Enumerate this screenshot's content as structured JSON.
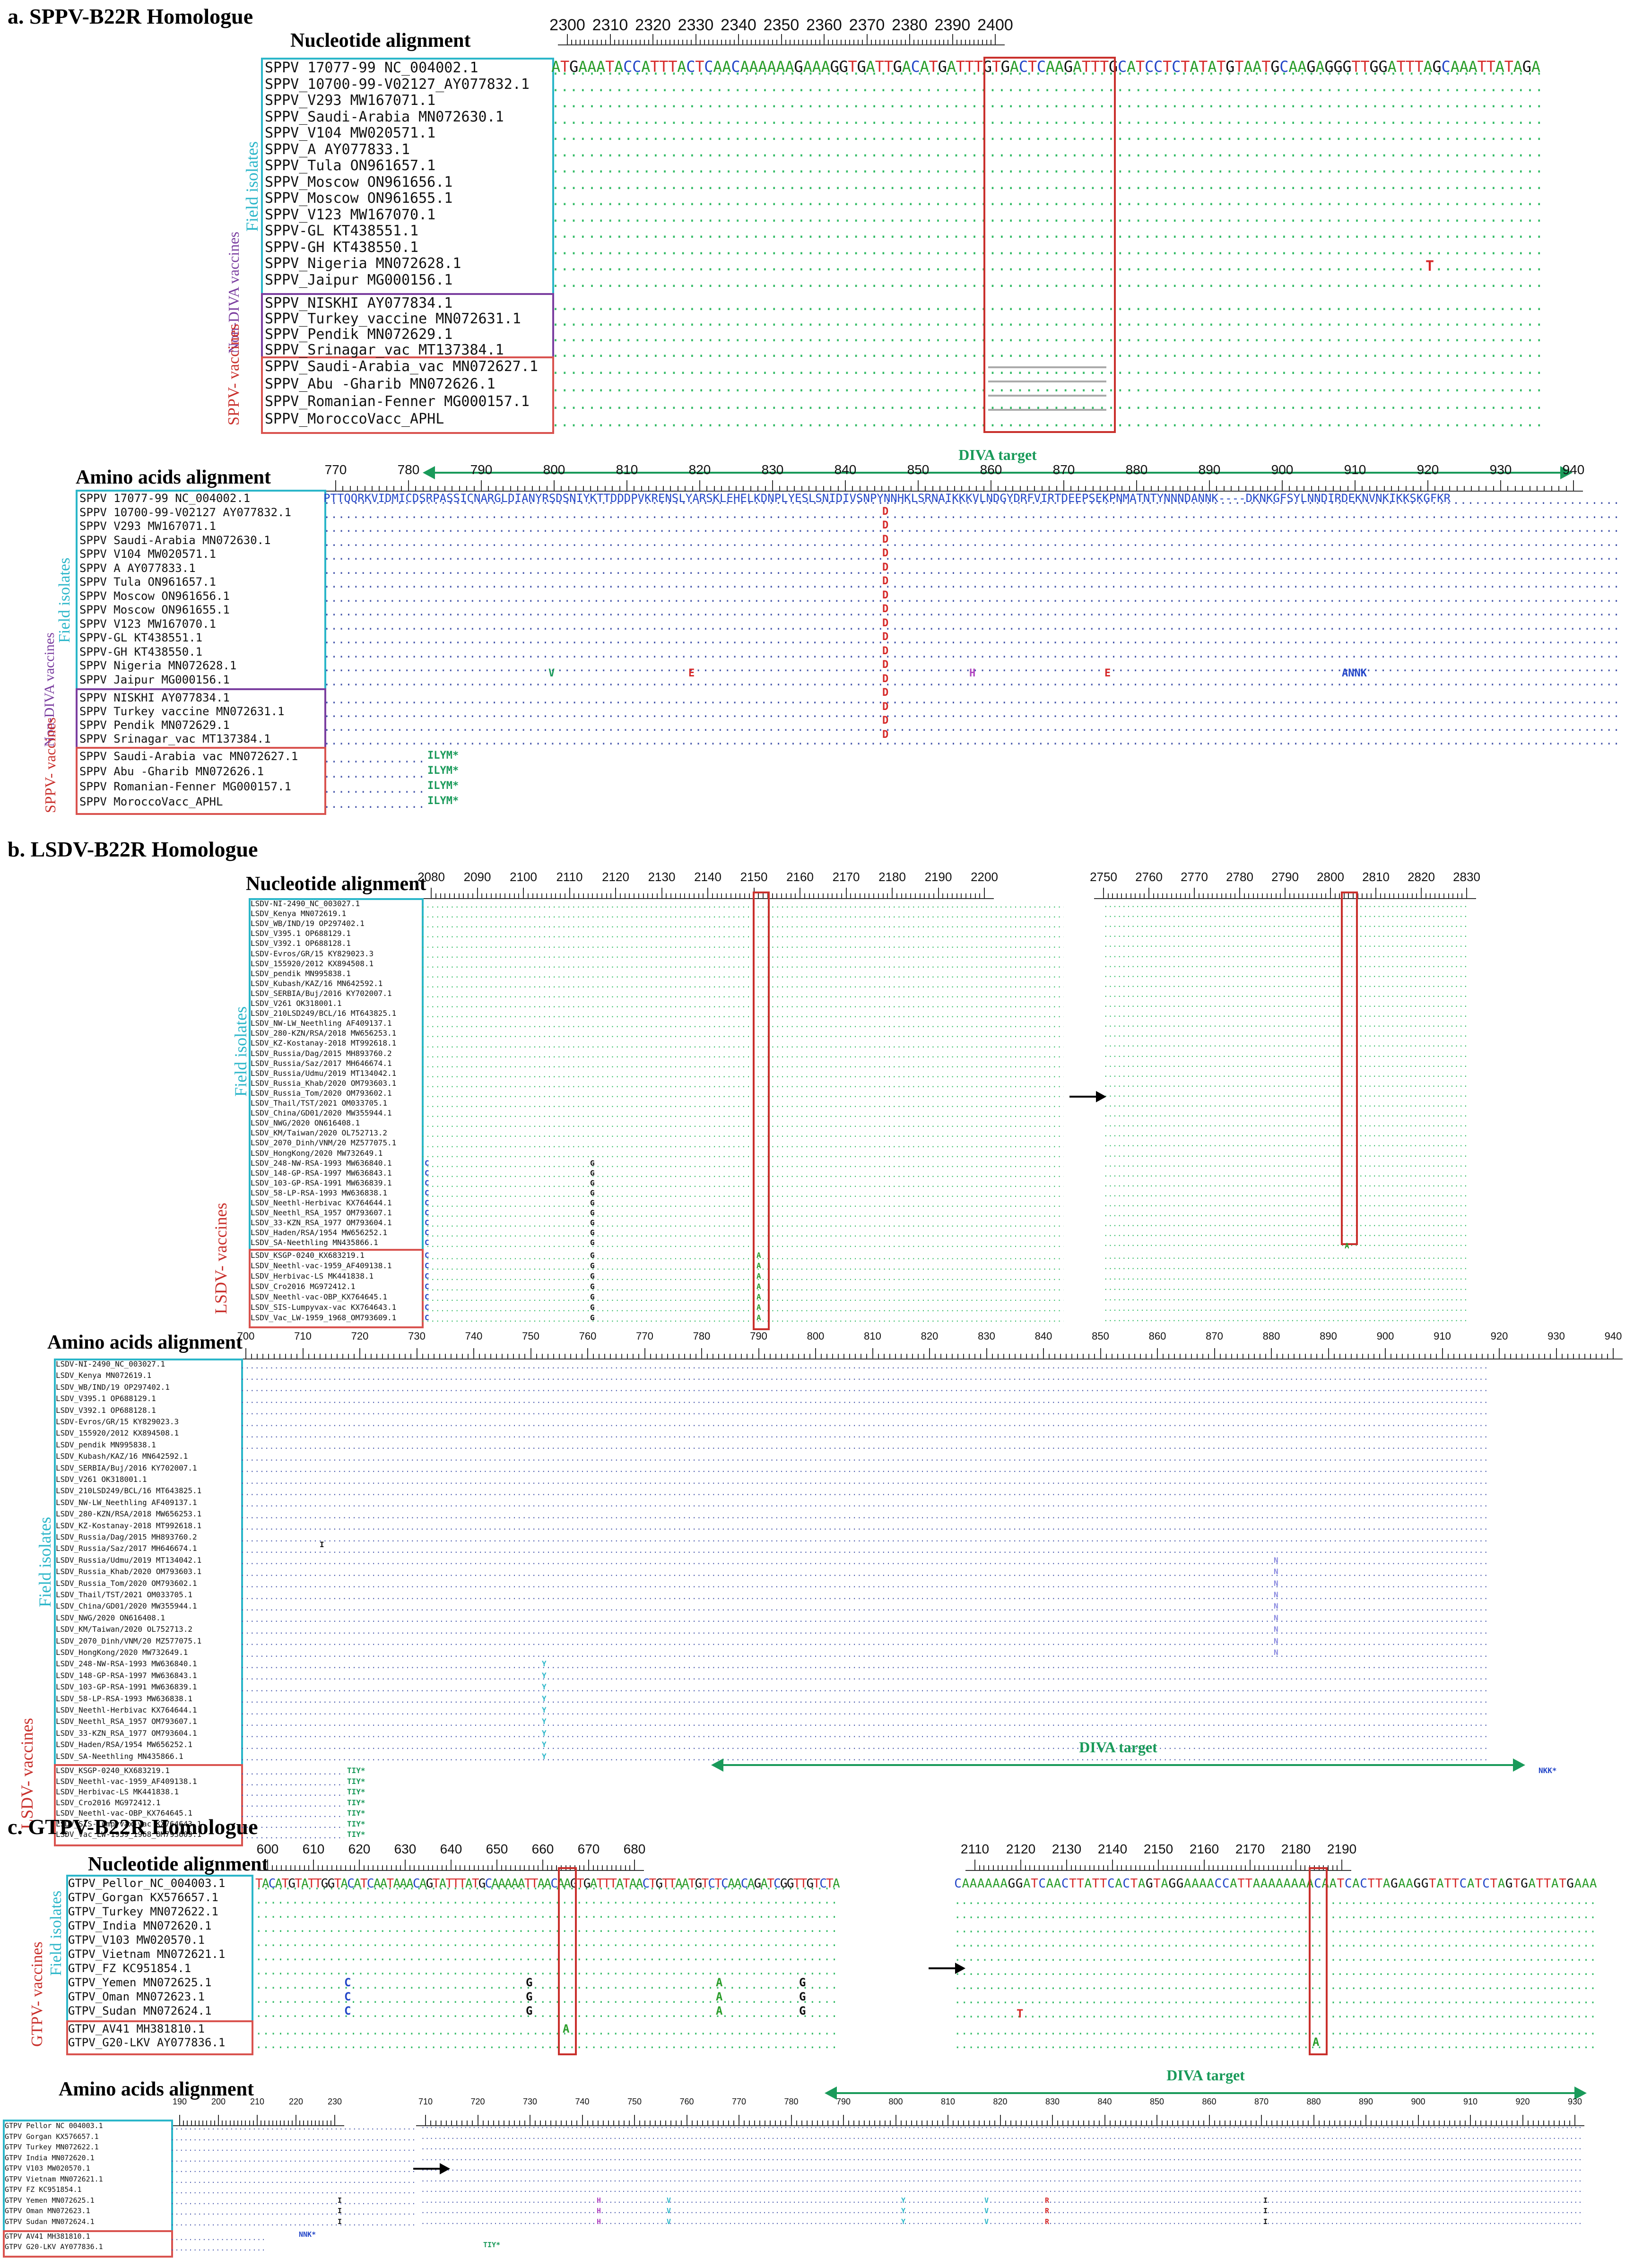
{
  "figure": {
    "panel_a": {
      "title": "a. SPPV-B22R Homologue",
      "nt_title": "Nucleotide alignment",
      "aa_title": "Amino acids alignment",
      "nt_ruler": [
        "2300",
        "2310",
        "2320",
        "2330",
        "2340",
        "2350",
        "2360",
        "2370",
        "2380",
        "2390",
        "2400"
      ],
      "aa_ruler": [
        "770",
        "780",
        "790",
        "800",
        "810",
        "820",
        "830",
        "840",
        "850",
        "860",
        "870",
        "880",
        "890",
        "900",
        "910",
        "920",
        "930",
        "940"
      ],
      "ref_seq": "ATGAAATACCATTTACTCAACAAAAAAGAAAGGTGATTGACATGATTTGTGACTCAAGATTTGCATCCTCTATATGTAATGCAAGAGGGTTGGATTTAGCAAATTATAGA",
      "aa_ref": "PTTQQRKVIDMICDSRPASSICNARGLDIANYRSDSNIYKTTDDDPVKRENSLYARSKLEHELKDNPLYESLSNIDIVSNPYNNHKLSRNAIKKKVLNDGYDRFVIRTDEEPSEKPNMATNTYNNNDANNK----DKNKGFSYLNNDIRDEKNVNKIKKSKGFKR",
      "field_label": "Field isolates",
      "nondiva_label": "Non-DIVA vaccines",
      "vacc_label": "SPPV- vaccines",
      "diva_label": "DIVA target",
      "field_isolates": [
        "SPPV 17077-99 NC_004002.1",
        "SPPV_10700-99-V02127_AY077832.1",
        "SPPV_V293 MW167071.1",
        "SPPV_Saudi-Arabia MN072630.1",
        "SPPV_V104 MW020571.1",
        "SPPV_A AY077833.1",
        "SPPV_Tula ON961657.1",
        "SPPV_Moscow ON961656.1",
        "SPPV_Moscow ON961655.1",
        "SPPV_V123 MW167070.1",
        "SPPV-GL KT438551.1",
        "SPPV-GH KT438550.1",
        "SPPV_Nigeria MN072628.1",
        "SPPV_Jaipur MG000156.1"
      ],
      "nondiva_vaccines": [
        "SPPV_NISKHI AY077834.1",
        "SPPV_Turkey_vaccine MN072631.1",
        "SPPV_Pendik MN072629.1",
        "SPPV_Srinagar_vac MT137384.1"
      ],
      "vaccines": [
        "SPPV_Saudi-Arabia_vac MN072627.1",
        "SPPV_Abu -Gharib MN072626.1",
        "SPPV_Romanian-Fenner MG000157.1",
        "SPPV_MoroccoVacc_APHL"
      ],
      "aa_field_isolates": [
        "SPPV 17077-99 NC_004002.1",
        "SPPV 10700-99-V02127 AY077832.1",
        "SPPV V293 MW167071.1",
        "SPPV Saudi-Arabia MN072630.1",
        "SPPV V104 MW020571.1",
        "SPPV A AY077833.1",
        "SPPV Tula ON961657.1",
        "SPPV Moscow ON961656.1",
        "SPPV Moscow ON961655.1",
        "SPPV V123 MW167070.1",
        "SPPV-GL KT438551.1",
        "SPPV-GH KT438550.1",
        "SPPV Nigeria MN072628.1",
        "SPPV Jaipur MG000156.1"
      ],
      "aa_nondiva": [
        "SPPV NISKHI AY077834.1",
        "SPPV Turkey vaccine MN072631.1",
        "SPPV Pendik MN072629.1",
        "SPPV Srinagar_vac MT137384.1"
      ],
      "aa_vaccines": [
        "SPPV Saudi-Arabia vac MN072627.1",
        "SPPV Abu -Gharib MN072626.1",
        "SPPV Romanian-Fenner MG000157.1",
        "SPPV MoroccoVacc_APHL"
      ],
      "aa_stop": "ILYM*",
      "nt_mut_T": "T",
      "aa_mut_D": "D",
      "aa_mut_V": "V",
      "aa_mut_E": "E",
      "aa_mut_H": "H",
      "aa_mut_ANNK": "ANNK"
    },
    "panel_b": {
      "title": "b. LSDV-B22R Homologue",
      "nt_title": "Nucleotide alignment",
      "aa_title": "Amino acids alignment",
      "nt_ruler_left": [
        "2080",
        "2090",
        "2100",
        "2110",
        "2120",
        "2130",
        "2140",
        "2150",
        "2160",
        "2170",
        "2180",
        "2190",
        "2200"
      ],
      "nt_ruler_right": [
        "2750",
        "2760",
        "2770",
        "2780",
        "2790",
        "2800",
        "2810",
        "2820",
        "2830"
      ],
      "aa_ruler": [
        "700",
        "710",
        "720",
        "730",
        "740",
        "750",
        "760",
        "770",
        "780",
        "790",
        "800",
        "810",
        "820",
        "830",
        "840",
        "850",
        "860",
        "870",
        "880",
        "890",
        "900",
        "910",
        "920",
        "930",
        "940"
      ],
      "field_label": "Field isolates",
      "vacc_label": "LSDV- vaccines",
      "diva_label": "DIVA target",
      "field_isolates": [
        "LSDV-NI-2490_NC_003027.1",
        "LSDV_Kenya MN072619.1",
        "LSDV_WB/IND/19 OP297402.1",
        "LSDV_V395.1 OP688129.1",
        "LSDV_V392.1 OP688128.1",
        "LSDV-Evros/GR/15 KY829023.3",
        "LSDV_155920/2012 KX894508.1",
        "LSDV_pendik MN995838.1",
        "LSDV_Kubash/KAZ/16 MN642592.1",
        "LSDV_SERBIA/Buj/2016 KY702007.1",
        "LSDV_V261 OK318001.1",
        "LSDV_210LSD249/BCL/16 MT643825.1",
        "LSDV_NW-LW_Neethling AF409137.1",
        "LSDV_280-KZN/RSA/2018 MW656253.1",
        "LSDV_KZ-Kostanay-2018 MT992618.1",
        "LSDV_Russia/Dag/2015 MH893760.2",
        "LSDV_Russia/Saz/2017 MH646674.1",
        "LSDV_Russia/Udmu/2019 MT134042.1",
        "LSDV_Russia_Khab/2020 OM793603.1",
        "LSDV_Russia_Tom/2020 OM793602.1",
        "LSDV_Thail/TST/2021 OM033705.1",
        "LSDV_China/GD01/2020 MW355944.1",
        "LSDV_NWG/2020 ON616408.1",
        "LSDV_KM/Taiwan/2020 OL752713.2",
        "LSDV_2070_Dinh/VNM/20 MZ577075.1",
        "LSDV_HongKong/2020 MW732649.1",
        "LSDV_248-NW-RSA-1993 MW636840.1",
        "LSDV_148-GP-RSA-1997 MW636843.1",
        "LSDV_103-GP-RSA-1991 MW636839.1",
        "LSDV_58-LP-RSA-1993 MW636838.1",
        "LSDV_Neethl-Herbivac KX764644.1",
        "LSDV_Neethl_RSA_1957 OM793607.1",
        "LSDV_33-KZN_RSA_1977 OM793604.1",
        "LSDV_Haden/RSA/1954 MW656252.1",
        "LSDV_SA-Neethling MN435866.1"
      ],
      "vaccines": [
        "LSDV_KSGP-0240_KX683219.1",
        "LSDV_Neethl-vac-1959_AF409138.1",
        "LSDV_Herbivac-LS MK441838.1",
        "LSDV_Cro2016 MG972412.1",
        "LSDV_Neethl-vac-OBP_KX764645.1",
        "LSDV_SIS-Lumpyvax-vac KX764643.1",
        "LSDV_Vac_LW-1959_1968_OM793609.1"
      ],
      "mut_C": "C",
      "mut_G": "G",
      "mut_A": "A",
      "aa_mut_Y": "Y",
      "aa_mut_N": "N",
      "aa_mut_I": "I",
      "aa_stop": "TIY*",
      "aa_stop2": "NKK*"
    },
    "panel_c": {
      "title": "c. GTPV-B22R Homologue",
      "nt_title": "Nucleotide alignment",
      "aa_title": "Amino acids alignment",
      "nt_ruler_left": [
        "600",
        "610",
        "620",
        "630",
        "640",
        "650",
        "660",
        "670",
        "680"
      ],
      "nt_ruler_right": [
        "2110",
        "2120",
        "2130",
        "2140",
        "2150",
        "2160",
        "2170",
        "2180",
        "2190"
      ],
      "aa_ruler_left": [
        "190",
        "200",
        "210",
        "220",
        "230"
      ],
      "aa_ruler_right": [
        "710",
        "720",
        "730",
        "740",
        "750",
        "760",
        "770",
        "780",
        "790",
        "800",
        "810",
        "820",
        "830",
        "840",
        "850",
        "860",
        "870",
        "880",
        "890",
        "900",
        "910",
        "920",
        "930"
      ],
      "ref_left": "TACATGTATTGGTACATCAATAAACAGTATTTATGCAAAAATTAACAAGTGATTTATAACTGTTAATGTCTCAACAGATCGGTTGTCTA",
      "ref_right": "CAAAAAAGGATCAACTTATTCACTAGTAGGAAAACCATTAAAAAAAACAATCACTTAGAAGGTATTCATCTAGTGATTATGAAA",
      "field_label": "Field isolates",
      "vacc_label": "GTPV- vaccines",
      "diva_label": "DIVA target",
      "field_isolates": [
        "GTPV_Pellor_NC_004003.1",
        "GTPV_Gorgan KX576657.1",
        "GTPV_Turkey MN072622.1",
        "GTPV_India MN072620.1",
        "GTPV_V103 MW020570.1",
        "GTPV_Vietnam MN072621.1",
        "GTPV_FZ KC951854.1",
        "GTPV_Yemen MN072625.1",
        "GTPV_Oman MN072623.1",
        "GTPV_Sudan MN072624.1"
      ],
      "vaccines": [
        "GTPV_AV41 MH381810.1",
        "GTPV_G20-LKV AY077836.1"
      ],
      "aa_field_isolates": [
        "GTPV Pellor NC 004003.1",
        "GTPV Gorgan KX576657.1",
        "GTPV Turkey MN072622.1",
        "GTPV India MN072620.1",
        "GTPV V103 MW020570.1",
        "GTPV Vietnam MN072621.1",
        "GTPV FZ KC951854.1",
        "GTPV Yemen MN072625.1",
        "GTPV Oman MN072623.1",
        "GTPV Sudan MN072624.1"
      ],
      "aa_vaccines": [
        "GTPV AV41 MH381810.1",
        "GTPV G20-LKV AY077836.1"
      ],
      "mut_C": "C",
      "mut_G": "G",
      "mut_A": "A",
      "mut_T": "T",
      "aa_mut_I": "I",
      "aa_mut_V": "V",
      "aa_mut_Y": "Y",
      "aa_mut_R": "R",
      "aa_mut_H": "H",
      "aa_stop": "NNK*",
      "aa_stop2": "TIY*"
    }
  },
  "colors": {
    "field": "#2bb6c9",
    "nondiva": "#7b3fa0",
    "vacc": "#d9534f",
    "diva": "#1a9a5a"
  }
}
